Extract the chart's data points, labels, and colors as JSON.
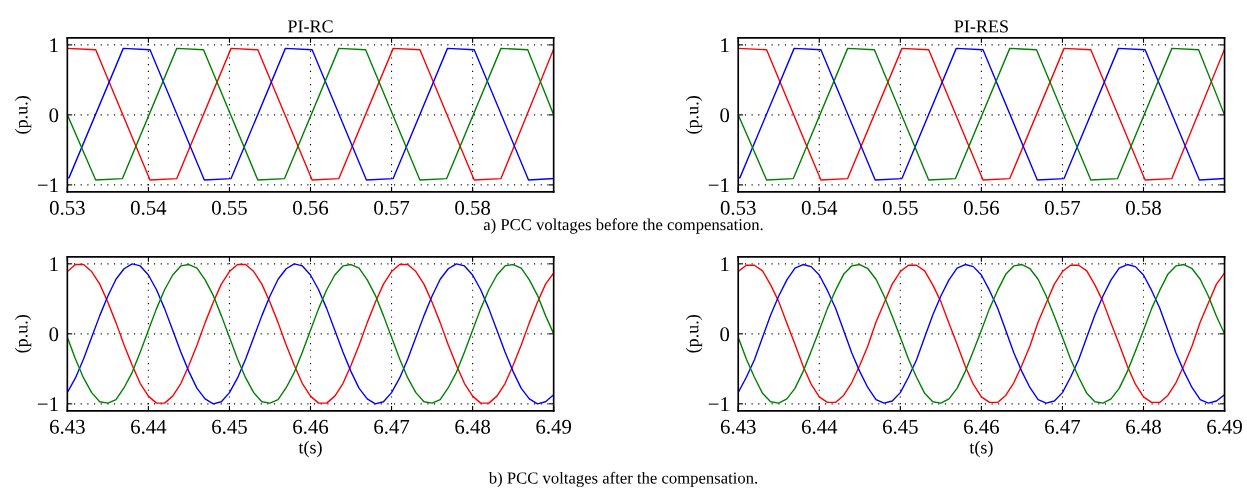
{
  "chart_data": [
    {
      "type": "line",
      "title": "PI-RC",
      "ylabel": "(p.u.)",
      "xlim": [
        0.53,
        0.59
      ],
      "xticks": [
        0.53,
        0.54,
        0.55,
        0.56,
        0.57,
        0.58
      ],
      "ylim": [
        -1.1,
        1.1
      ],
      "yticks": [
        -1,
        0,
        1
      ],
      "grid": true,
      "line_style": "solid",
      "marker": "none",
      "annotations": [
        "a) PCC voltages before the compensation."
      ],
      "series": [
        {
          "color": "#ff0000",
          "x": [
            0.53,
            0.5335,
            0.5402,
            0.5435,
            0.5502,
            0.5535,
            0.5602,
            0.5635,
            0.5702,
            0.5735,
            0.5802,
            0.5835,
            0.59
          ],
          "values": [
            0.95,
            0.93,
            -0.93,
            -0.91,
            0.95,
            0.93,
            -0.93,
            -0.91,
            0.95,
            0.93,
            -0.93,
            -0.91,
            0.94
          ]
        },
        {
          "color": "#0000ff",
          "x": [
            0.53,
            0.5302,
            0.5369,
            0.5402,
            0.5469,
            0.5502,
            0.5569,
            0.5602,
            0.5669,
            0.5702,
            0.5769,
            0.5802,
            0.5869,
            0.59
          ],
          "values": [
            -0.9,
            -0.9,
            0.95,
            0.93,
            -0.93,
            -0.91,
            0.95,
            0.93,
            -0.93,
            -0.91,
            0.95,
            0.93,
            -0.93,
            -0.91
          ]
        },
        {
          "color": "#008000",
          "x": [
            0.53,
            0.5335,
            0.5368,
            0.5435,
            0.5468,
            0.5535,
            0.5568,
            0.5635,
            0.5668,
            0.5735,
            0.5768,
            0.5835,
            0.5868,
            0.59
          ],
          "values": [
            0.0,
            -0.93,
            -0.91,
            0.95,
            0.93,
            -0.93,
            -0.91,
            0.95,
            0.93,
            -0.93,
            -0.91,
            0.95,
            0.93,
            0.0
          ]
        }
      ]
    },
    {
      "type": "line",
      "title": "PI-RES",
      "ylabel": "(p.u.)",
      "xlim": [
        0.53,
        0.59
      ],
      "xticks": [
        0.53,
        0.54,
        0.55,
        0.56,
        0.57,
        0.58
      ],
      "ylim": [
        -1.1,
        1.1
      ],
      "yticks": [
        -1,
        0,
        1
      ],
      "grid": true,
      "line_style": "solid",
      "marker": "none",
      "series": [
        {
          "color": "#ff0000",
          "x": [
            0.53,
            0.5335,
            0.5402,
            0.5435,
            0.5502,
            0.5535,
            0.5602,
            0.5635,
            0.5702,
            0.5735,
            0.5802,
            0.5835,
            0.59
          ],
          "values": [
            0.95,
            0.93,
            -0.93,
            -0.91,
            0.95,
            0.93,
            -0.93,
            -0.91,
            0.95,
            0.93,
            -0.93,
            -0.91,
            0.94
          ]
        },
        {
          "color": "#0000ff",
          "x": [
            0.53,
            0.5302,
            0.5369,
            0.5402,
            0.5469,
            0.5502,
            0.5569,
            0.5602,
            0.5669,
            0.5702,
            0.5769,
            0.5802,
            0.5869,
            0.59
          ],
          "values": [
            -0.9,
            -0.9,
            0.95,
            0.93,
            -0.93,
            -0.91,
            0.95,
            0.93,
            -0.93,
            -0.91,
            0.95,
            0.93,
            -0.93,
            -0.91
          ]
        },
        {
          "color": "#008000",
          "x": [
            0.53,
            0.5335,
            0.5368,
            0.5435,
            0.5468,
            0.5535,
            0.5568,
            0.5635,
            0.5668,
            0.5735,
            0.5768,
            0.5835,
            0.5868,
            0.59
          ],
          "values": [
            0.0,
            -0.93,
            -0.91,
            0.95,
            0.93,
            -0.93,
            -0.91,
            0.95,
            0.93,
            -0.93,
            -0.91,
            0.95,
            0.93,
            0.0
          ]
        }
      ]
    },
    {
      "type": "line",
      "xlabel": "t(s)",
      "ylabel": "(p.u.)",
      "xlim": [
        6.43,
        6.49
      ],
      "xticks": [
        6.43,
        6.44,
        6.45,
        6.46,
        6.47,
        6.48,
        6.49
      ],
      "ylim": [
        -1.1,
        1.1
      ],
      "yticks": [
        -1,
        0,
        1
      ],
      "grid": true,
      "line_style": "solid",
      "marker": "none",
      "annotations": [
        "b) PCC voltages after the compensation."
      ],
      "x": [
        6.43,
        6.431,
        6.432,
        6.433,
        6.434,
        6.435,
        6.436,
        6.437,
        6.438,
        6.439,
        6.44,
        6.441,
        6.442,
        6.443,
        6.444,
        6.445,
        6.446,
        6.447,
        6.448,
        6.449,
        6.45,
        6.451,
        6.452,
        6.453,
        6.454,
        6.455,
        6.456,
        6.457,
        6.458,
        6.459,
        6.46,
        6.461,
        6.462,
        6.463,
        6.464,
        6.465,
        6.466,
        6.467,
        6.468,
        6.469,
        6.47,
        6.471,
        6.472,
        6.473,
        6.474,
        6.475,
        6.476,
        6.477,
        6.478,
        6.479,
        6.48,
        6.481,
        6.482,
        6.483,
        6.484,
        6.485,
        6.486,
        6.487,
        6.488,
        6.489,
        6.49
      ],
      "series": [
        {
          "color": "#ff0000",
          "values": [
            0.89,
            0.99,
            0.99,
            0.89,
            0.71,
            0.45,
            0.16,
            -0.16,
            -0.45,
            -0.71,
            -0.89,
            -0.99,
            -0.99,
            -0.89,
            -0.71,
            -0.45,
            -0.16,
            0.16,
            0.45,
            0.71,
            0.89,
            0.99,
            0.99,
            0.89,
            0.71,
            0.45,
            0.16,
            -0.16,
            -0.45,
            -0.71,
            -0.89,
            -0.99,
            -0.99,
            -0.89,
            -0.71,
            -0.45,
            -0.16,
            0.16,
            0.45,
            0.71,
            0.89,
            0.99,
            0.99,
            0.89,
            0.71,
            0.45,
            0.16,
            -0.16,
            -0.45,
            -0.71,
            -0.89,
            -0.99,
            -0.99,
            -0.89,
            -0.71,
            -0.45,
            -0.16,
            0.16,
            0.45,
            0.71,
            0.87
          ]
        },
        {
          "color": "#0000ff",
          "values": [
            -0.84,
            -0.63,
            -0.36,
            -0.05,
            0.26,
            0.54,
            0.78,
            0.93,
            1.0,
            0.97,
            0.84,
            0.63,
            0.36,
            0.05,
            -0.26,
            -0.54,
            -0.78,
            -0.93,
            -1.0,
            -0.97,
            -0.84,
            -0.63,
            -0.36,
            -0.05,
            0.26,
            0.54,
            0.78,
            0.93,
            1.0,
            0.97,
            0.84,
            0.63,
            0.36,
            0.05,
            -0.26,
            -0.54,
            -0.78,
            -0.93,
            -1.0,
            -0.97,
            -0.84,
            -0.63,
            -0.36,
            -0.05,
            0.26,
            0.54,
            0.78,
            0.93,
            1.0,
            0.97,
            0.84,
            0.63,
            0.36,
            0.05,
            -0.26,
            -0.54,
            -0.78,
            -0.93,
            -1.0,
            -0.97,
            -0.87
          ]
        },
        {
          "color": "#008000",
          "values": [
            -0.05,
            -0.36,
            -0.63,
            -0.84,
            -0.97,
            -0.99,
            -0.94,
            -0.77,
            -0.55,
            -0.26,
            0.05,
            0.36,
            0.63,
            0.84,
            0.97,
            0.99,
            0.94,
            0.77,
            0.55,
            0.26,
            -0.05,
            -0.36,
            -0.63,
            -0.84,
            -0.97,
            -0.99,
            -0.94,
            -0.77,
            -0.55,
            -0.26,
            0.05,
            0.36,
            0.63,
            0.84,
            0.97,
            0.99,
            0.94,
            0.77,
            0.55,
            0.26,
            -0.05,
            -0.36,
            -0.63,
            -0.84,
            -0.97,
            -0.99,
            -0.94,
            -0.77,
            -0.55,
            -0.26,
            0.05,
            0.36,
            0.63,
            0.84,
            0.97,
            0.99,
            0.94,
            0.77,
            0.55,
            0.26,
            0.0
          ]
        }
      ]
    },
    {
      "type": "line",
      "xlabel": "t(s)",
      "ylabel": "(p.u.)",
      "xlim": [
        6.43,
        6.49
      ],
      "xticks": [
        6.43,
        6.44,
        6.45,
        6.46,
        6.47,
        6.48,
        6.49
      ],
      "ylim": [
        -1.1,
        1.1
      ],
      "yticks": [
        -1,
        0,
        1
      ],
      "grid": true,
      "line_style": "solid",
      "marker": "none",
      "x": [
        6.43,
        6.431,
        6.432,
        6.433,
        6.434,
        6.435,
        6.436,
        6.437,
        6.438,
        6.439,
        6.44,
        6.441,
        6.442,
        6.443,
        6.444,
        6.445,
        6.446,
        6.447,
        6.448,
        6.449,
        6.45,
        6.451,
        6.452,
        6.453,
        6.454,
        6.455,
        6.456,
        6.457,
        6.458,
        6.459,
        6.46,
        6.461,
        6.462,
        6.463,
        6.464,
        6.465,
        6.466,
        6.467,
        6.468,
        6.469,
        6.47,
        6.471,
        6.472,
        6.473,
        6.474,
        6.475,
        6.476,
        6.477,
        6.478,
        6.479,
        6.48,
        6.481,
        6.482,
        6.483,
        6.484,
        6.485,
        6.486,
        6.487,
        6.488,
        6.489,
        6.49
      ],
      "series": [
        {
          "color": "#ff0000",
          "values": [
            0.89,
            0.98,
            0.98,
            0.9,
            0.7,
            0.46,
            0.15,
            -0.15,
            -0.46,
            -0.72,
            -0.9,
            -0.98,
            -0.98,
            -0.88,
            -0.7,
            -0.45,
            -0.17,
            0.17,
            0.44,
            0.71,
            0.89,
            0.98,
            0.98,
            0.9,
            0.7,
            0.46,
            0.15,
            -0.15,
            -0.46,
            -0.72,
            -0.9,
            -0.98,
            -0.98,
            -0.88,
            -0.7,
            -0.45,
            -0.17,
            0.17,
            0.44,
            0.71,
            0.89,
            0.98,
            0.98,
            0.9,
            0.7,
            0.46,
            0.15,
            -0.15,
            -0.46,
            -0.72,
            -0.9,
            -0.98,
            -0.98,
            -0.88,
            -0.7,
            -0.45,
            -0.17,
            0.17,
            0.44,
            0.71,
            0.87
          ]
        },
        {
          "color": "#0000ff",
          "values": [
            -0.84,
            -0.62,
            -0.37,
            -0.05,
            0.27,
            0.54,
            0.77,
            0.94,
            0.99,
            0.96,
            0.84,
            0.62,
            0.37,
            0.05,
            -0.27,
            -0.54,
            -0.77,
            -0.94,
            -0.99,
            -0.96,
            -0.84,
            -0.62,
            -0.37,
            -0.05,
            0.27,
            0.54,
            0.77,
            0.94,
            0.99,
            0.96,
            0.84,
            0.62,
            0.37,
            0.05,
            -0.27,
            -0.54,
            -0.77,
            -0.94,
            -0.99,
            -0.96,
            -0.84,
            -0.62,
            -0.37,
            -0.05,
            0.27,
            0.54,
            0.77,
            0.94,
            0.99,
            0.96,
            0.84,
            0.62,
            0.37,
            0.05,
            -0.27,
            -0.54,
            -0.77,
            -0.94,
            -0.99,
            -0.96,
            -0.87
          ]
        },
        {
          "color": "#008000",
          "values": [
            -0.05,
            -0.36,
            -0.62,
            -0.85,
            -0.97,
            -0.99,
            -0.93,
            -0.78,
            -0.54,
            -0.25,
            0.05,
            0.36,
            0.62,
            0.85,
            0.97,
            0.99,
            0.93,
            0.78,
            0.54,
            0.25,
            -0.05,
            -0.36,
            -0.62,
            -0.85,
            -0.97,
            -0.99,
            -0.93,
            -0.78,
            -0.54,
            -0.25,
            0.05,
            0.36,
            0.62,
            0.85,
            0.97,
            0.99,
            0.93,
            0.78,
            0.54,
            0.25,
            -0.05,
            -0.36,
            -0.62,
            -0.85,
            -0.97,
            -0.99,
            -0.93,
            -0.78,
            -0.54,
            -0.25,
            0.05,
            0.36,
            0.62,
            0.85,
            0.97,
            0.99,
            0.93,
            0.78,
            0.54,
            0.25,
            0.0
          ]
        }
      ]
    }
  ]
}
